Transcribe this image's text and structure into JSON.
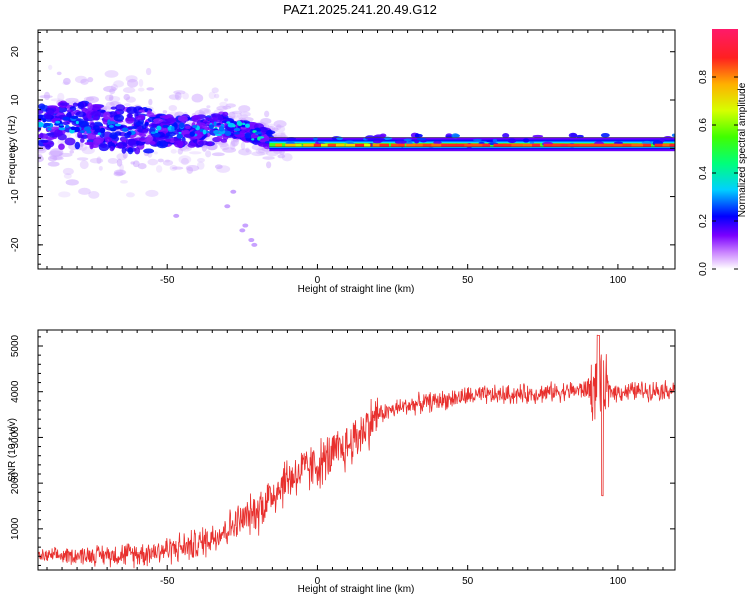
{
  "title": "PAZ1.2025.241.20.49.G12",
  "chart_data": [
    {
      "type": "heatmap",
      "xlabel": "Height of straight line (km)",
      "ylabel": "Frequency (Hz)",
      "xlim": [
        -93,
        119
      ],
      "ylim": [
        -25,
        24.5
      ],
      "xticks": [
        -50,
        0,
        50,
        100
      ],
      "yticks": [
        -20,
        -10,
        0,
        10,
        20
      ],
      "colorbar": {
        "label": "Normalized spectral amplitude",
        "range": [
          0,
          1
        ],
        "ticks": [
          0.0,
          0.2,
          0.4,
          0.6,
          0.8
        ]
      },
      "ridge": {
        "description_points_x": [
          -93,
          -80,
          -65,
          -50,
          -40,
          -30,
          -20,
          -15,
          0,
          50,
          100,
          119
        ],
        "frequency_hz": [
          4.5,
          5.0,
          4.0,
          3.5,
          3.5,
          4.5,
          3.0,
          1.5,
          1.0,
          0.5,
          0.5,
          0.5
        ]
      }
    },
    {
      "type": "line",
      "xlabel": "Height of straight line (km)",
      "ylabel": "SNR (10 * v/v)",
      "xlim": [
        -93,
        119
      ],
      "ylim": [
        100,
        5350
      ],
      "xticks": [
        -50,
        0,
        50,
        100
      ],
      "yticks": [
        1000,
        2000,
        3000,
        4000,
        5000
      ],
      "series": [
        {
          "name": "SNR",
          "color": "#e8302e",
          "trend_x": [
            -93,
            -60,
            -40,
            -30,
            -20,
            -10,
            0,
            10,
            20,
            30,
            50,
            70,
            80,
            90,
            100,
            119
          ],
          "trend_y": [
            400,
            450,
            650,
            1000,
            1400,
            2100,
            2400,
            2800,
            3500,
            3700,
            3900,
            3950,
            4000,
            4050,
            4000,
            4050
          ]
        }
      ]
    }
  ]
}
